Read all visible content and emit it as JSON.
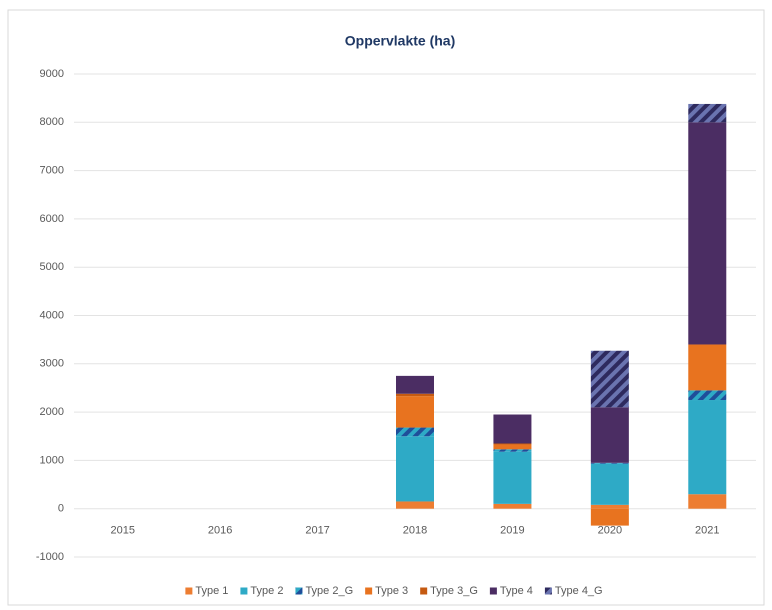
{
  "chart_data": {
    "type": "stacked_bar",
    "title": "Oppervlakte (ha)",
    "categories": [
      "2015",
      "2016",
      "2017",
      "2018",
      "2019",
      "2020",
      "2021"
    ],
    "series": [
      {
        "name": "Type 1",
        "color": "#ed7d31",
        "values": [
          0,
          0,
          0,
          150,
          100,
          80,
          300
        ]
      },
      {
        "name": "Type 2",
        "color": "#2eaac6",
        "values": [
          0,
          0,
          0,
          1350,
          1080,
          850,
          1950
        ]
      },
      {
        "name": "Type 2_G",
        "color": "#2eaac6",
        "hatch": "#1f4e9a",
        "values": [
          0,
          0,
          0,
          180,
          50,
          20,
          200
        ]
      },
      {
        "name": "Type 3",
        "color": "#e8731f",
        "values": [
          0,
          0,
          0,
          650,
          100,
          -350,
          950
        ]
      },
      {
        "name": "Type 3_G",
        "color": "#c55a11",
        "values": [
          0,
          0,
          0,
          50,
          20,
          0,
          0
        ]
      },
      {
        "name": "Type 4",
        "color": "#4b2d63",
        "values": [
          0,
          0,
          0,
          370,
          600,
          1150,
          4600
        ]
      },
      {
        "name": "Type 4_G",
        "color": "#2e2a5e",
        "hatch": "#6a74b0",
        "values": [
          0,
          0,
          0,
          0,
          0,
          1170,
          380
        ]
      }
    ],
    "ylim": [
      -1000,
      9000
    ],
    "yticks": [
      -1000,
      0,
      1000,
      2000,
      3000,
      4000,
      5000,
      6000,
      7000,
      8000,
      9000
    ],
    "grid": true,
    "legend": "bottom"
  }
}
